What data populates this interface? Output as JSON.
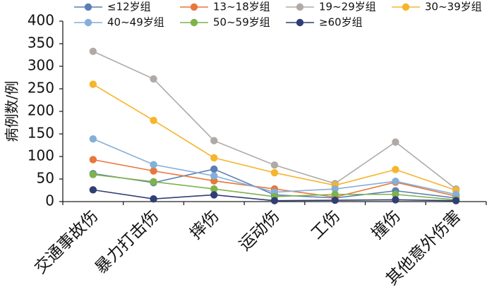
{
  "chart_data": {
    "type": "line",
    "ylabel": "病例数/例",
    "xlabel": "",
    "ylim": [
      0,
      400
    ],
    "yticks": [
      0,
      50,
      100,
      150,
      200,
      250,
      300,
      350,
      400
    ],
    "grid": false,
    "legend_position": "top",
    "categories": [
      "交通事故伤",
      "暴力打击伤",
      "摔伤",
      "运动伤",
      "工伤",
      "撞伤",
      "其他意外伤害"
    ],
    "series": [
      {
        "name": "≤12岁组",
        "color": "#5b7fb3",
        "values": [
          62,
          42,
          72,
          15,
          8,
          24,
          8
        ]
      },
      {
        "name": "13~18岁组",
        "color": "#e9773a",
        "values": [
          93,
          68,
          46,
          28,
          10,
          43,
          12
        ]
      },
      {
        "name": "19~29岁组",
        "color": "#b0aaa7",
        "values": [
          333,
          272,
          135,
          81,
          40,
          132,
          28
        ]
      },
      {
        "name": "30~39岁组",
        "color": "#f6b52a",
        "values": [
          260,
          180,
          97,
          64,
          36,
          71,
          25
        ]
      },
      {
        "name": "40~49岁组",
        "color": "#84afd9",
        "values": [
          139,
          82,
          57,
          21,
          28,
          45,
          16
        ]
      },
      {
        "name": "50~59岁组",
        "color": "#7fb24c",
        "values": [
          60,
          44,
          28,
          11,
          16,
          16,
          4
        ]
      },
      {
        "name": "≥60岁组",
        "color": "#2f3f74",
        "values": [
          26,
          6,
          15,
          2,
          3,
          4,
          2
        ]
      }
    ]
  }
}
